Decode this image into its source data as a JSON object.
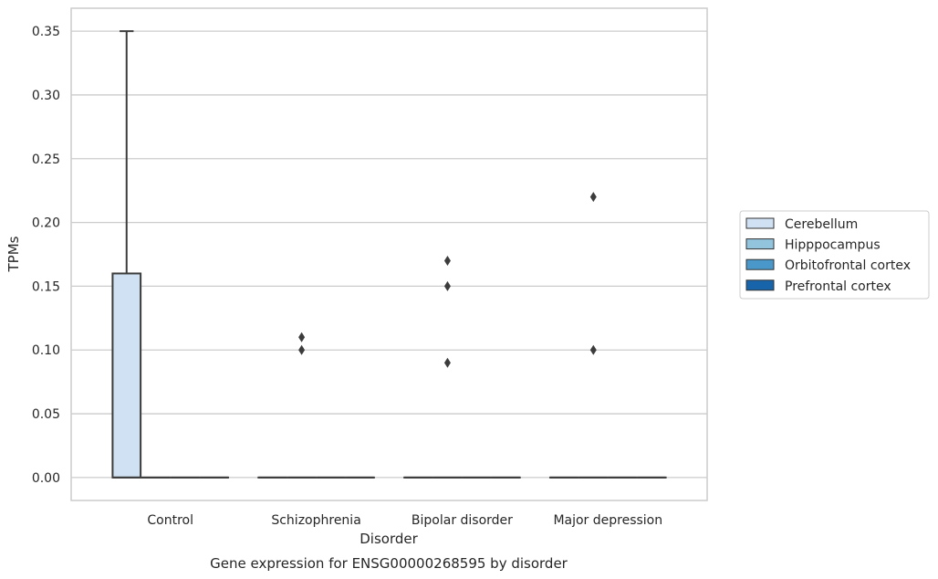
{
  "chart_data": {
    "type": "box",
    "title": "",
    "caption": "Gene expression for ENSG00000268595 by disorder",
    "xlabel": "Disorder",
    "ylabel": "TPMs",
    "ylim": [
      -0.018,
      0.368
    ],
    "yticks": [
      0.0,
      0.05,
      0.1,
      0.15,
      0.2,
      0.25,
      0.3,
      0.35
    ],
    "ytick_labels": [
      "0.00",
      "0.05",
      "0.10",
      "0.15",
      "0.20",
      "0.25",
      "0.30",
      "0.35"
    ],
    "categories": [
      "Control",
      "Schizophrenia",
      "Bipolar disorder",
      "Major depression"
    ],
    "grid": "horizontal",
    "legend_position": "right",
    "series": [
      {
        "name": "Cerebellum",
        "color": "#cfe1f2",
        "boxes": [
          {
            "min": 0.0,
            "q1": 0.0,
            "median": 0.0,
            "q3": 0.16,
            "max": 0.35,
            "outliers": []
          },
          {
            "min": 0.0,
            "q1": 0.0,
            "median": 0.0,
            "q3": 0.0,
            "max": 0.0,
            "outliers": []
          },
          {
            "min": 0.0,
            "q1": 0.0,
            "median": 0.0,
            "q3": 0.0,
            "max": 0.0,
            "outliers": []
          },
          {
            "min": 0.0,
            "q1": 0.0,
            "median": 0.0,
            "q3": 0.0,
            "max": 0.0,
            "outliers": []
          }
        ]
      },
      {
        "name": "Hipppocampus",
        "color": "#93c4de",
        "boxes": [
          {
            "min": 0.0,
            "q1": 0.0,
            "median": 0.0,
            "q3": 0.0,
            "max": 0.0,
            "outliers": []
          },
          {
            "min": 0.0,
            "q1": 0.0,
            "median": 0.0,
            "q3": 0.0,
            "max": 0.0,
            "outliers": [
              0.1,
              0.11
            ]
          },
          {
            "min": 0.0,
            "q1": 0.0,
            "median": 0.0,
            "q3": 0.0,
            "max": 0.0,
            "outliers": [
              0.09,
              0.15,
              0.17
            ]
          },
          {
            "min": 0.0,
            "q1": 0.0,
            "median": 0.0,
            "q3": 0.0,
            "max": 0.0,
            "outliers": [
              0.1,
              0.22
            ]
          }
        ]
      },
      {
        "name": "Orbitofrontal cortex",
        "color": "#4a98c9",
        "boxes": [
          {
            "min": 0.0,
            "q1": 0.0,
            "median": 0.0,
            "q3": 0.0,
            "max": 0.0,
            "outliers": []
          },
          {
            "min": 0.0,
            "q1": 0.0,
            "median": 0.0,
            "q3": 0.0,
            "max": 0.0,
            "outliers": []
          },
          {
            "min": 0.0,
            "q1": 0.0,
            "median": 0.0,
            "q3": 0.0,
            "max": 0.0,
            "outliers": []
          },
          {
            "min": 0.0,
            "q1": 0.0,
            "median": 0.0,
            "q3": 0.0,
            "max": 0.0,
            "outliers": []
          }
        ]
      },
      {
        "name": "Prefrontal cortex",
        "color": "#1764ab",
        "boxes": [
          {
            "min": 0.0,
            "q1": 0.0,
            "median": 0.0,
            "q3": 0.0,
            "max": 0.0,
            "outliers": []
          },
          {
            "min": 0.0,
            "q1": 0.0,
            "median": 0.0,
            "q3": 0.0,
            "max": 0.0,
            "outliers": []
          },
          {
            "min": 0.0,
            "q1": 0.0,
            "median": 0.0,
            "q3": 0.0,
            "max": 0.0,
            "outliers": []
          },
          {
            "min": 0.0,
            "q1": 0.0,
            "median": 0.0,
            "q3": 0.0,
            "max": 0.0,
            "outliers": []
          }
        ]
      }
    ],
    "colors": {
      "grid": "#cccccc",
      "frame": "#cccccc",
      "box_edge": "#3c3c3c",
      "text": "#262626"
    }
  }
}
